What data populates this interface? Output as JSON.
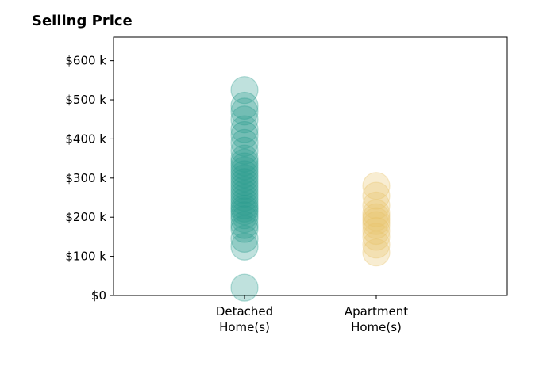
{
  "chart_data": {
    "type": "scatter",
    "title": "Selling Price",
    "xlabel": "",
    "ylabel": "",
    "categories": [
      {
        "line1": "Detached",
        "line2": "Home(s)"
      },
      {
        "line1": "Apartment",
        "line2": "Home(s)"
      }
    ],
    "ylim": [
      0,
      660000
    ],
    "yticks": [
      0,
      100000,
      200000,
      300000,
      400000,
      500000,
      600000
    ],
    "ytick_labels": [
      "$0",
      "$100 k",
      "$200 k",
      "$300 k",
      "$400 k",
      "$500 k",
      "$600 k"
    ],
    "grid": false,
    "legend": "none",
    "series": [
      {
        "color": "#2a9d8f",
        "category_index": 0,
        "values": [
          20000,
          125000,
          145000,
          170000,
          180000,
          195000,
          205000,
          215000,
          222000,
          230000,
          240000,
          250000,
          260000,
          270000,
          280000,
          290000,
          300000,
          310000,
          320000,
          330000,
          340000,
          350000,
          370000,
          390000,
          410000,
          425000,
          450000,
          470000,
          485000,
          525000
        ]
      },
      {
        "color": "#e9c46a",
        "category_index": 1,
        "values": [
          110000,
          130000,
          150000,
          165000,
          180000,
          190000,
          200000,
          210000,
          230000,
          255000,
          280000
        ]
      }
    ]
  }
}
